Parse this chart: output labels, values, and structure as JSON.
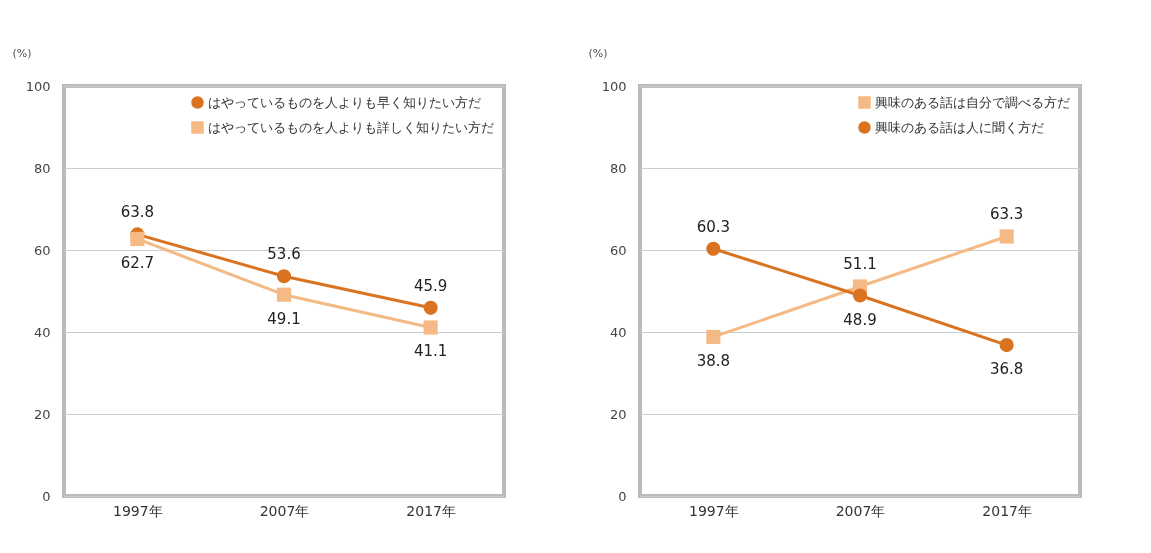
{
  "chart_data": [
    {
      "type": "line",
      "ylabel": "(%)",
      "categories": [
        "1997年",
        "2007年",
        "2017年"
      ],
      "ylim": [
        0,
        100
      ],
      "yticks": [
        0,
        20,
        40,
        60,
        80,
        100
      ],
      "grid": "y",
      "legend": "top right",
      "data_labels": true,
      "series": [
        {
          "name": "はやっているものを人よりも早く知りたい方だ",
          "color": "#d9731f",
          "marker": "circle",
          "values": [
            63.8,
            53.6,
            45.9
          ]
        },
        {
          "name": "はやっているものを人よりも詳しく知りたい方だ",
          "color": "#f5b985",
          "marker": "square",
          "values": [
            62.7,
            49.1,
            41.1
          ]
        }
      ]
    },
    {
      "type": "line",
      "ylabel": "(%)",
      "categories": [
        "1997年",
        "2007年",
        "2017年"
      ],
      "ylim": [
        0,
        100
      ],
      "yticks": [
        0,
        20,
        40,
        60,
        80,
        100
      ],
      "grid": "y",
      "legend": "top right",
      "data_labels": true,
      "series": [
        {
          "name": "興味のある話は自分で調べる方だ",
          "color": "#f5b985",
          "marker": "square",
          "values": [
            38.8,
            51.1,
            63.3
          ]
        },
        {
          "name": "興味のある話は人に聞く方だ",
          "color": "#d9731f",
          "marker": "circle",
          "values": [
            60.3,
            48.9,
            36.8
          ]
        }
      ]
    }
  ]
}
